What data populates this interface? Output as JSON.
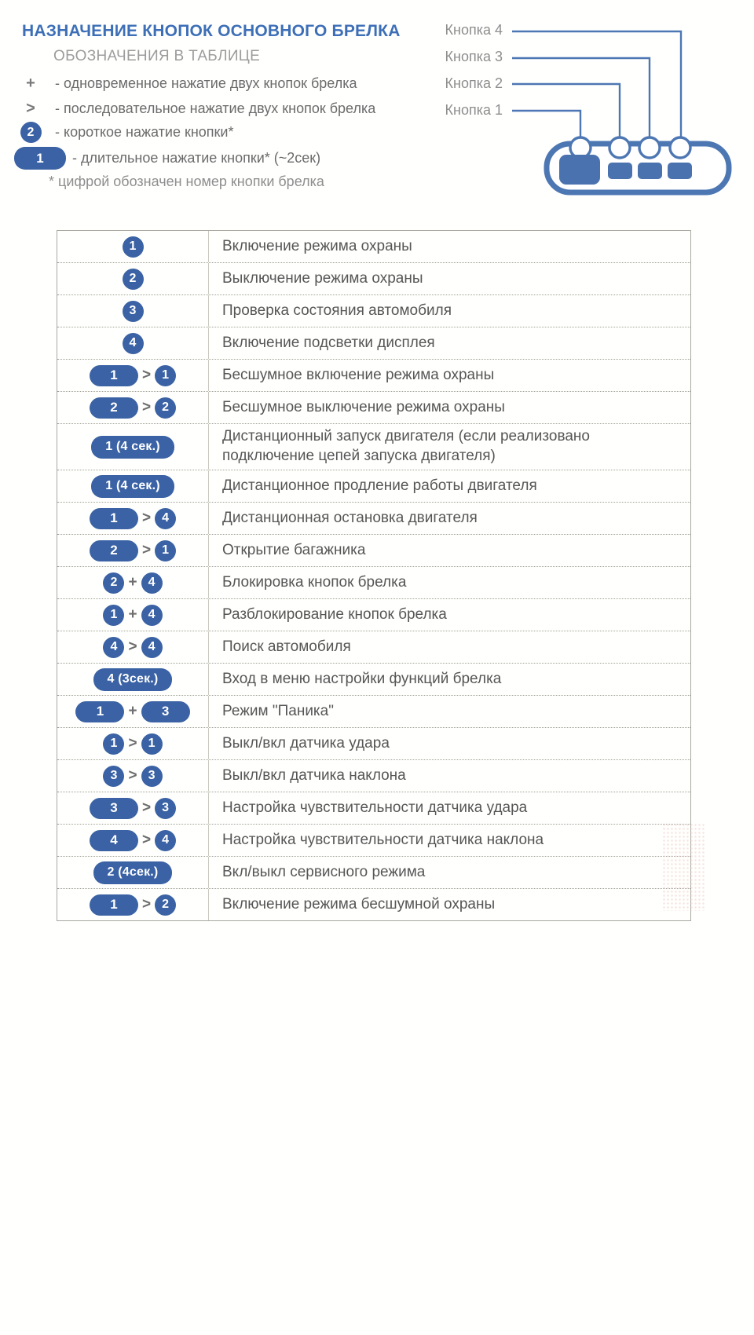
{
  "header": {
    "title": "НАЗНАЧЕНИЕ КНОПОК ОСНОВНОГО БРЕЛКА",
    "subtitle": "ОБОЗНАЧЕНИЯ В ТАБЛИЦЕ",
    "legend": [
      {
        "marker_label": "+",
        "text": "- одновременное нажатие двух кнопок брелка"
      },
      {
        "marker_label": ">",
        "text": "- последовательное нажатие двух кнопок брелка"
      },
      {
        "marker_label": "2",
        "text": "- короткое нажатие кнопки*"
      },
      {
        "marker_label": "1",
        "text": "- длительное нажатие кнопки* (~2сек)"
      }
    ],
    "footnote": "* цифрой обозначен номер кнопки брелка"
  },
  "diagram": {
    "labels": [
      "Кнопка 4",
      "Кнопка 3",
      "Кнопка 2",
      "Кнопка 1"
    ]
  },
  "table": {
    "rows": [
      {
        "markers": [
          {
            "t": "circle",
            "v": "1"
          }
        ],
        "text": "Включение режима охраны"
      },
      {
        "markers": [
          {
            "t": "circle",
            "v": "2"
          }
        ],
        "text": "Выключение режима охраны"
      },
      {
        "markers": [
          {
            "t": "circle",
            "v": "3"
          }
        ],
        "text": "Проверка состояния автомобиля"
      },
      {
        "markers": [
          {
            "t": "circle",
            "v": "4"
          }
        ],
        "text": "Включение подсветки дисплея"
      },
      {
        "markers": [
          {
            "t": "pill",
            "v": "1"
          },
          {
            "t": "sep",
            "v": ">"
          },
          {
            "t": "circle",
            "v": "1"
          }
        ],
        "text": "Бесшумное включение режима охраны"
      },
      {
        "markers": [
          {
            "t": "pill",
            "v": "2"
          },
          {
            "t": "sep",
            "v": ">"
          },
          {
            "t": "circle",
            "v": "2"
          }
        ],
        "text": "Бесшумное выключение режима охраны"
      },
      {
        "markers": [
          {
            "t": "pill",
            "v": "1 (4 сек.)"
          }
        ],
        "text": "Дистанционный запуск двигателя (если реализовано\nподключение цепей запуска двигателя)",
        "tall": true
      },
      {
        "markers": [
          {
            "t": "pill",
            "v": "1 (4 сек.)"
          }
        ],
        "text": "Дистанционное продление работы двигателя"
      },
      {
        "markers": [
          {
            "t": "pill",
            "v": "1"
          },
          {
            "t": "sep",
            "v": ">"
          },
          {
            "t": "circle",
            "v": "4"
          }
        ],
        "text": "Дистанционная остановка двигателя"
      },
      {
        "markers": [
          {
            "t": "pill",
            "v": "2"
          },
          {
            "t": "sep",
            "v": ">"
          },
          {
            "t": "circle",
            "v": "1"
          }
        ],
        "text": "Открытие багажника"
      },
      {
        "markers": [
          {
            "t": "circle",
            "v": "2"
          },
          {
            "t": "sep",
            "v": "+"
          },
          {
            "t": "circle",
            "v": "4"
          }
        ],
        "text": "Блокировка кнопок брелка"
      },
      {
        "markers": [
          {
            "t": "circle",
            "v": "1"
          },
          {
            "t": "sep",
            "v": "+"
          },
          {
            "t": "circle",
            "v": "4"
          }
        ],
        "text": "Разблокирование кнопок брелка"
      },
      {
        "markers": [
          {
            "t": "circle",
            "v": "4"
          },
          {
            "t": "sep",
            "v": ">"
          },
          {
            "t": "circle",
            "v": "4"
          }
        ],
        "text": "Поиск автомобиля"
      },
      {
        "markers": [
          {
            "t": "pill",
            "v": "4 (3сек.)"
          }
        ],
        "text": "Вход в меню настройки функций брелка"
      },
      {
        "markers": [
          {
            "t": "pill",
            "v": "1"
          },
          {
            "t": "sep",
            "v": "+"
          },
          {
            "t": "pill",
            "v": "3"
          }
        ],
        "text": "Режим \"Паника\""
      },
      {
        "markers": [
          {
            "t": "circle",
            "v": "1"
          },
          {
            "t": "sep",
            "v": ">"
          },
          {
            "t": "circle",
            "v": "1"
          }
        ],
        "text": "Выкл/вкл датчика удара"
      },
      {
        "markers": [
          {
            "t": "circle",
            "v": "3"
          },
          {
            "t": "sep",
            "v": ">"
          },
          {
            "t": "circle",
            "v": "3"
          }
        ],
        "text": "Выкл/вкл датчика наклона"
      },
      {
        "markers": [
          {
            "t": "pill",
            "v": "3"
          },
          {
            "t": "sep",
            "v": ">"
          },
          {
            "t": "circle",
            "v": "3"
          }
        ],
        "text": "Настройка чувствительности датчика удара"
      },
      {
        "markers": [
          {
            "t": "pill",
            "v": "4"
          },
          {
            "t": "sep",
            "v": ">"
          },
          {
            "t": "circle",
            "v": "4"
          }
        ],
        "text": "Настройка чувствительности датчика наклона"
      },
      {
        "markers": [
          {
            "t": "pill",
            "v": "2 (4сек.)"
          }
        ],
        "text": "Вкл/выкл сервисного режима"
      },
      {
        "markers": [
          {
            "t": "pill",
            "v": "1"
          },
          {
            "t": "sep",
            "v": ">"
          },
          {
            "t": "circle",
            "v": "2"
          }
        ],
        "text": "Включение режима бесшумной охраны"
      }
    ]
  },
  "colors": {
    "title_blue": "#3d6fb7",
    "badge_blue": "#3a62a4",
    "diagram_blue": "#4d77b3",
    "table_text": "#565656",
    "muted_gray": "#8e8e8e"
  }
}
